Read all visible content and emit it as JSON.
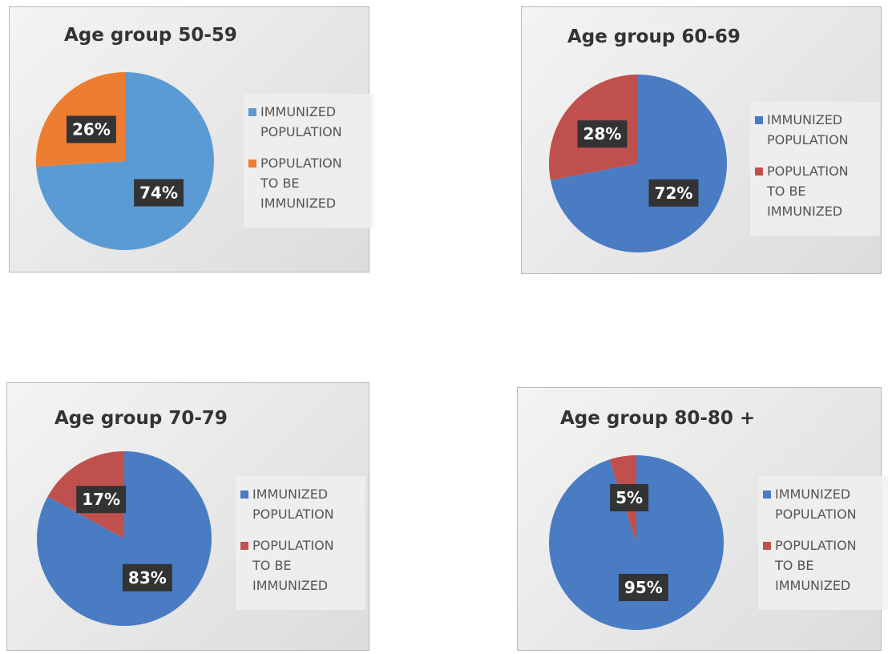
{
  "chart_data": [
    {
      "type": "pie",
      "title": "Age group 50-59",
      "categories": [
        "IMMUNIZED POPULATION",
        "POPULATION TO BE IMMUNIZED"
      ],
      "values": [
        74,
        26
      ],
      "value_labels": [
        "74%",
        "26%"
      ],
      "colors": [
        "#5b9bd5",
        "#ed7d31"
      ]
    },
    {
      "type": "pie",
      "title": "Age group 60-69",
      "categories": [
        "IMMUNIZED POPULATION",
        "POPULATION TO BE IMMUNIZED"
      ],
      "values": [
        72,
        28
      ],
      "value_labels": [
        "72%",
        "28%"
      ],
      "colors": [
        "#4a7cc4",
        "#c0504d"
      ]
    },
    {
      "type": "pie",
      "title": "Age group 70-79",
      "categories": [
        "IMMUNIZED POPULATION",
        "POPULATION TO BE IMMUNIZED"
      ],
      "values": [
        83,
        17
      ],
      "value_labels": [
        "83%",
        "17%"
      ],
      "colors": [
        "#4a7cc4",
        "#c0504d"
      ]
    },
    {
      "type": "pie",
      "title": "Age group 80-80 +",
      "categories": [
        "IMMUNIZED POPULATION",
        "POPULATION TO BE IMMUNIZED"
      ],
      "values": [
        95,
        5
      ],
      "value_labels": [
        "95%",
        "5%"
      ],
      "colors": [
        "#4a7cc4",
        "#c0504d"
      ]
    }
  ]
}
